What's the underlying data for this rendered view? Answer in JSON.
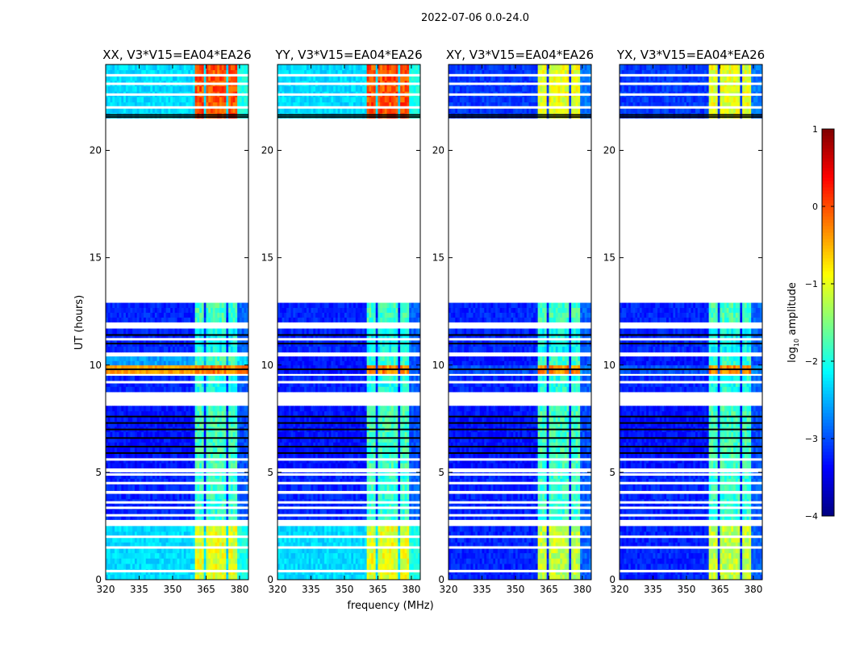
{
  "chart_data": {
    "type": "heatmap",
    "title": "2022-07-06 0.0-24.0",
    "xlabel": "frequency (MHz)",
    "ylabel": "UT (hours)",
    "xlim": [
      320,
      384
    ],
    "ylim": [
      0,
      24
    ],
    "xticks": [
      "320",
      "335",
      "350",
      "365",
      "380"
    ],
    "xtick_values": [
      320,
      335,
      350,
      365,
      380
    ],
    "yticks": [
      "0",
      "5",
      "10",
      "15",
      "20"
    ],
    "ytick_values": [
      0,
      5,
      10,
      15,
      20
    ],
    "panels": [
      {
        "title": "XX, V3*V15=EA04*EA26"
      },
      {
        "title": "YY, V3*V15=EA04*EA26"
      },
      {
        "title": "XY, V3*V15=EA04*EA26"
      },
      {
        "title": "YX, V3*V15=EA04*EA26"
      }
    ],
    "colorbar": {
      "label": "log10 amplitude",
      "label_main": "log",
      "label_sub": "10",
      "label_rest": " amplitude",
      "range": [
        -4,
        1
      ],
      "ticks": [
        "1",
        "0",
        "−1",
        "−2",
        "−3",
        "−4"
      ],
      "tick_values": [
        1,
        0,
        -1,
        -2,
        -3,
        -4
      ],
      "colormap": "jet"
    },
    "rfi_channels_mhz": [
      [
        360.5,
        364
      ],
      [
        365.5,
        369.5
      ],
      [
        370.5,
        373.5
      ],
      [
        375,
        379
      ]
    ],
    "segments": [
      {
        "t": [
          0.0,
          2.5
        ],
        "base": [
          -2.3,
          -2.3,
          -3.2,
          -3.2
        ],
        "rfi": [
          -1.0,
          -1.0,
          -1.2,
          -1.2
        ]
      },
      {
        "t": [
          2.8,
          4.0
        ],
        "base": [
          -3.2,
          -3.2,
          -3.2,
          -3.2
        ],
        "rfi": [
          -1.9,
          -1.9,
          -1.9,
          -1.9
        ]
      },
      {
        "t": [
          4.15,
          5.0
        ],
        "base": [
          -3.2,
          -3.2,
          -3.2,
          -3.2
        ],
        "rfi": [
          -1.9,
          -1.9,
          -1.9,
          -1.9
        ]
      },
      {
        "t": [
          5.2,
          8.1
        ],
        "base": [
          -3.3,
          -3.3,
          -3.3,
          -3.3
        ],
        "rfi": [
          -1.8,
          -1.8,
          -1.8,
          -1.8
        ]
      },
      {
        "t": [
          8.75,
          9.5
        ],
        "base": [
          -3.2,
          -3.2,
          -3.2,
          -3.2
        ],
        "rfi": [
          -2.0,
          -2.0,
          -2.0,
          -2.0
        ]
      },
      {
        "t": [
          9.6,
          10.0
        ],
        "base": [
          -0.4,
          -3.3,
          -3.0,
          -3.0
        ],
        "rfi": [
          -0.2,
          -0.3,
          -0.3,
          -0.3
        ]
      },
      {
        "t": [
          10.0,
          10.4
        ],
        "base": [
          -2.6,
          -3.3,
          -3.3,
          -3.3
        ],
        "rfi": [
          -1.8,
          -1.9,
          -1.9,
          -1.9
        ]
      },
      {
        "t": [
          10.6,
          11.7
        ],
        "base": [
          -3.2,
          -3.2,
          -3.2,
          -3.2
        ],
        "rfi": [
          -2.1,
          -2.1,
          -2.1,
          -2.1
        ]
      },
      {
        "t": [
          12.0,
          12.9
        ],
        "base": [
          -3.2,
          -3.2,
          -3.2,
          -3.2
        ],
        "rfi": [
          -1.8,
          -1.8,
          -1.8,
          -1.8
        ]
      },
      {
        "t": [
          21.5,
          24.0
        ],
        "base": [
          -2.3,
          -2.3,
          -3.1,
          -3.1
        ],
        "rfi": [
          0.0,
          0.0,
          -1.0,
          -1.0
        ]
      }
    ],
    "flagged_gaps_hours": [
      0.4,
      1.5,
      2.0,
      3.0,
      3.35,
      3.6,
      4.5,
      4.9,
      5.6,
      8.35,
      9.2,
      11.2,
      22.0,
      22.6,
      23.1,
      23.5
    ],
    "dark_lines_hours": [
      5.9,
      6.2,
      6.6,
      7.0,
      7.3,
      7.6,
      9.8,
      11.0,
      11.4,
      21.55,
      21.65
    ]
  }
}
